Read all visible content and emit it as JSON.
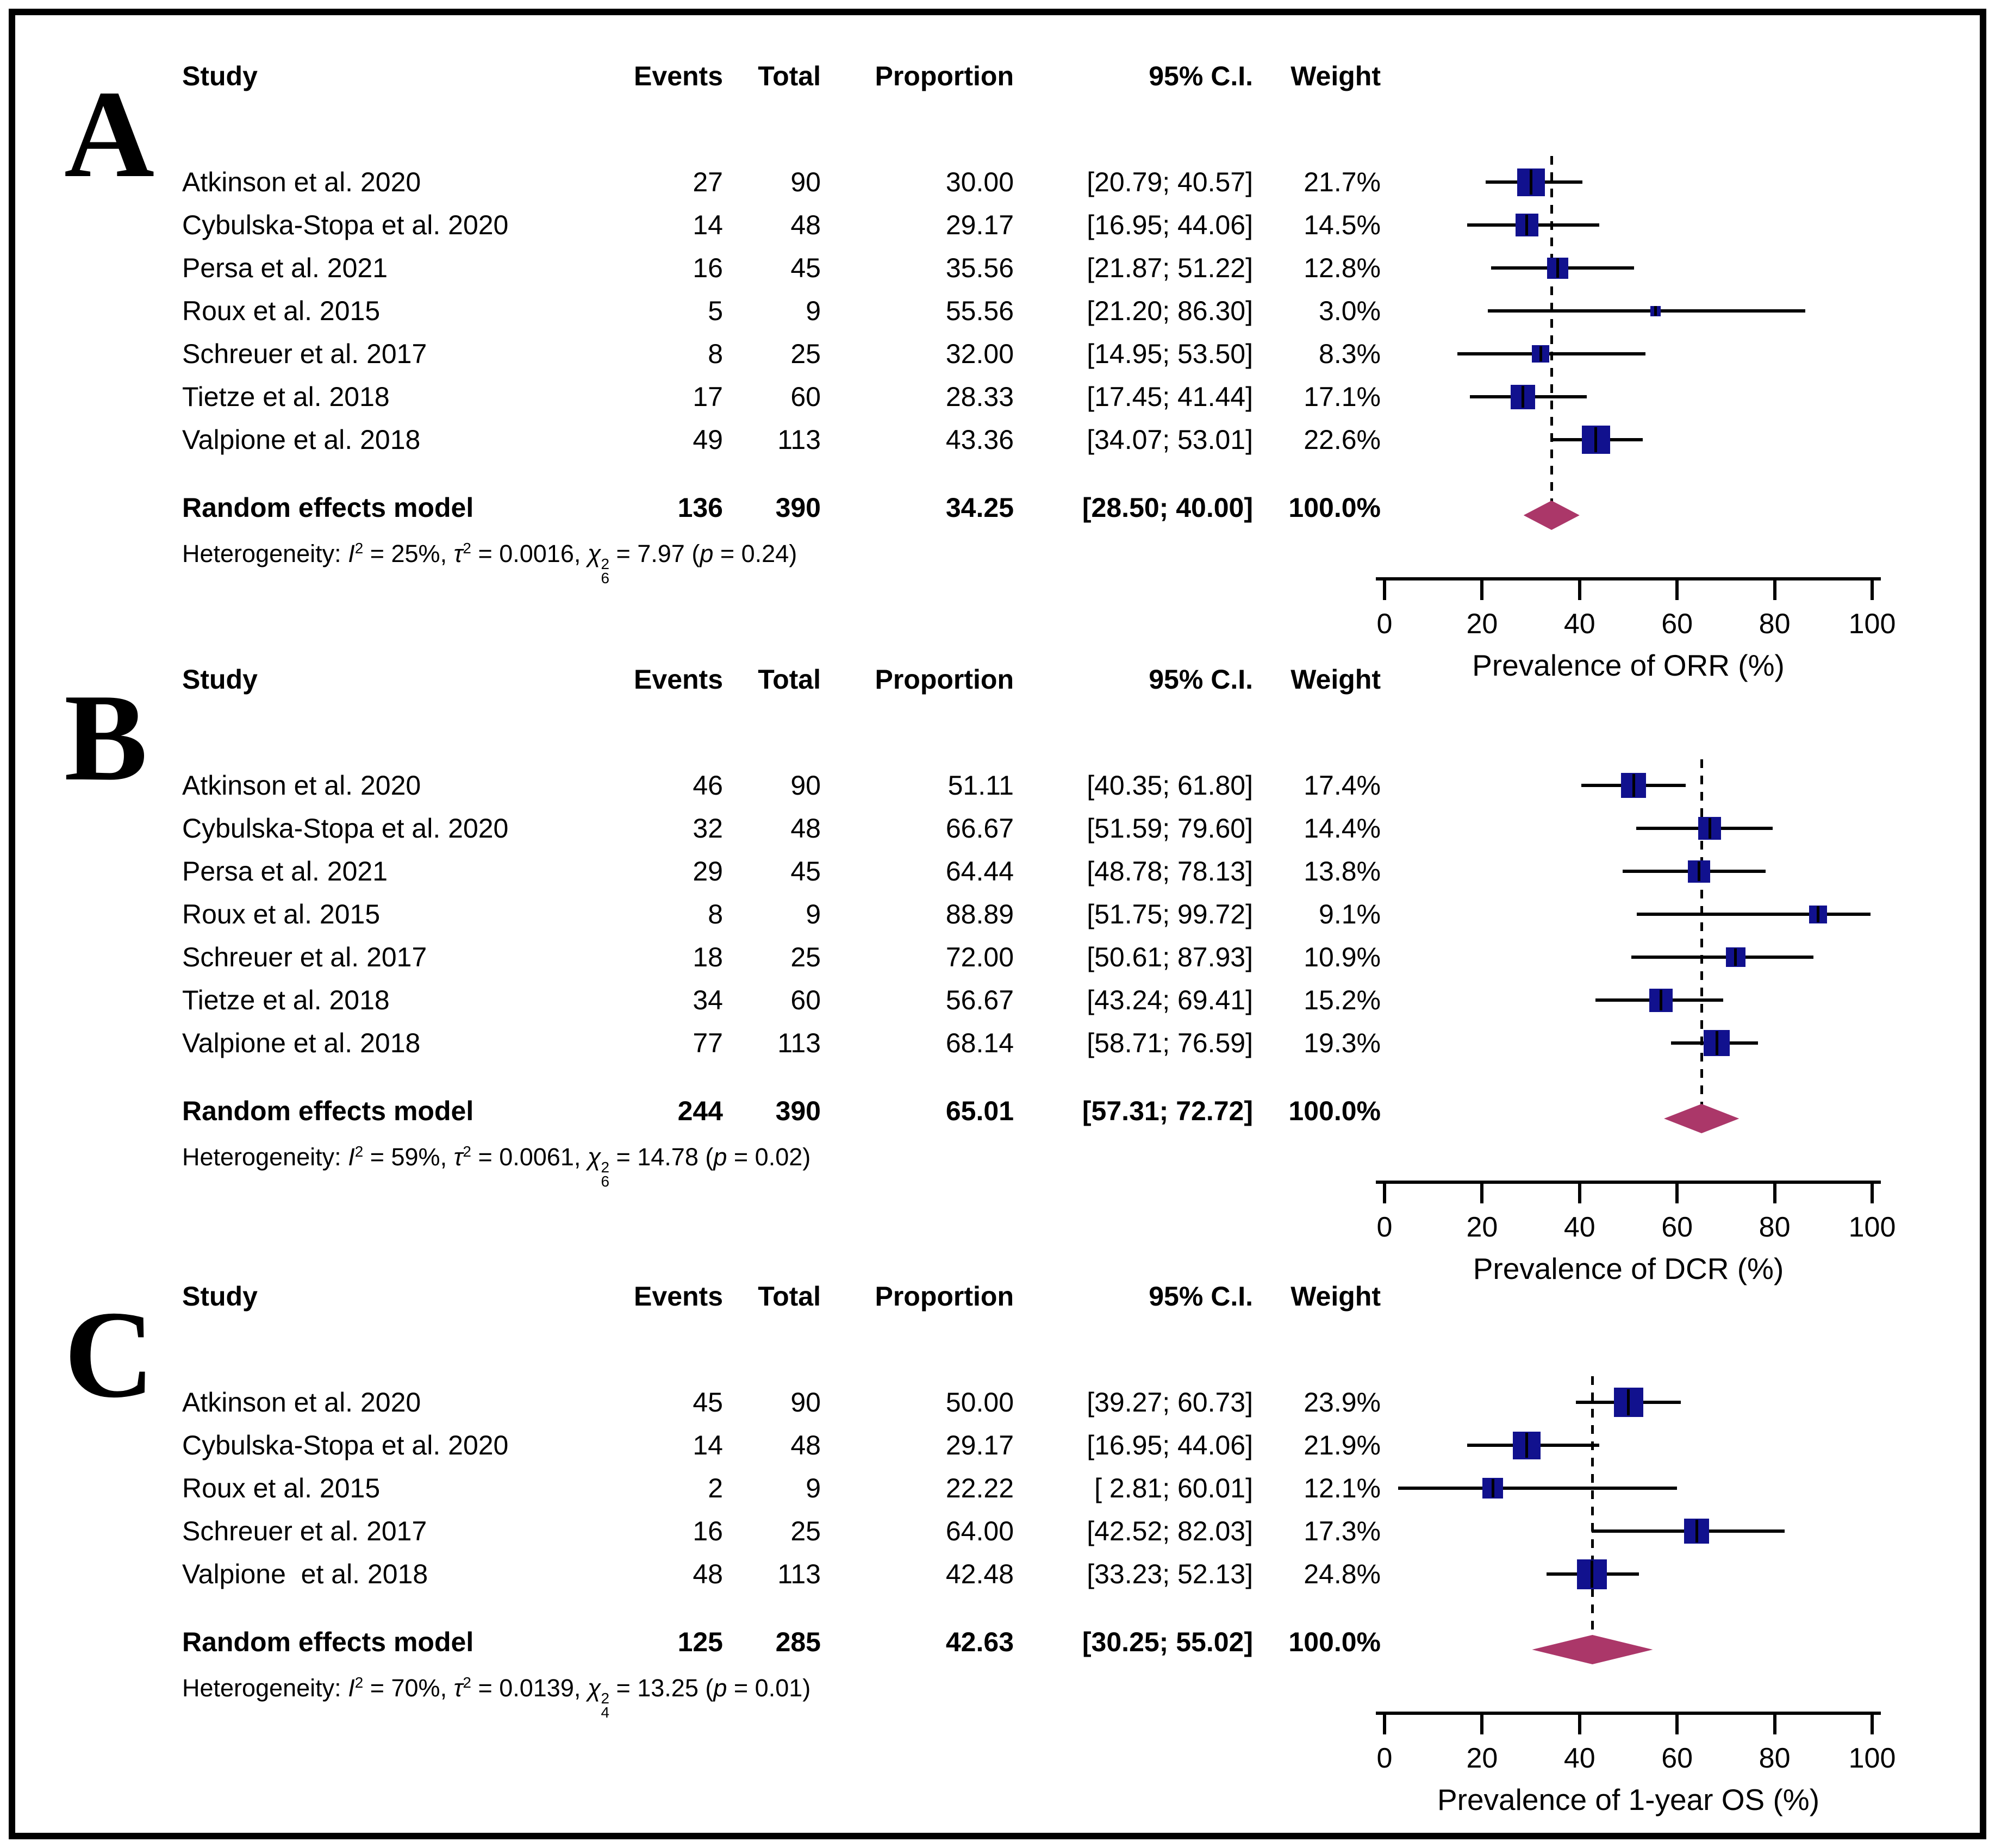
{
  "table_headers": {
    "study": "Study",
    "events": "Events",
    "total": "Total",
    "proportion": "Proportion",
    "ci": "95% C.I.",
    "weight": "Weight"
  },
  "pooled_label": "Random effects model",
  "colors": {
    "square": "#11118e",
    "diamond": "#ab3769",
    "line": "#000000"
  },
  "chart_data": [
    {
      "type": "forest",
      "panel_label": "A",
      "xlabel": "Prevalence of ORR (%)",
      "xlim": [
        0,
        100
      ],
      "xticks": [
        0,
        20,
        40,
        60,
        80,
        100
      ],
      "studies": [
        {
          "label": "Atkinson et al. 2020",
          "events": "27",
          "total": "90",
          "proportion": 30.0,
          "proportion_text": "30.00",
          "ci": [
            20.79,
            40.57
          ],
          "ci_text": "[20.79; 40.57]",
          "weight": 21.7,
          "weight_text": "21.7%"
        },
        {
          "label": "Cybulska-Stopa et al. 2020",
          "events": "14",
          "total": "48",
          "proportion": 29.17,
          "proportion_text": "29.17",
          "ci": [
            16.95,
            44.06
          ],
          "ci_text": "[16.95; 44.06]",
          "weight": 14.5,
          "weight_text": "14.5%"
        },
        {
          "label": "Persa et al. 2021",
          "events": "16",
          "total": "45",
          "proportion": 35.56,
          "proportion_text": "35.56",
          "ci": [
            21.87,
            51.22
          ],
          "ci_text": "[21.87; 51.22]",
          "weight": 12.8,
          "weight_text": "12.8%"
        },
        {
          "label": "Roux et al. 2015",
          "events": "5",
          "total": "9",
          "proportion": 55.56,
          "proportion_text": "55.56",
          "ci": [
            21.2,
            86.3
          ],
          "ci_text": "[21.20; 86.30]",
          "weight": 3.0,
          "weight_text": "3.0%"
        },
        {
          "label": "Schreuer et al. 2017",
          "events": "8",
          "total": "25",
          "proportion": 32.0,
          "proportion_text": "32.00",
          "ci": [
            14.95,
            53.5
          ],
          "ci_text": "[14.95; 53.50]",
          "weight": 8.3,
          "weight_text": "8.3%"
        },
        {
          "label": "Tietze et al. 2018",
          "events": "17",
          "total": "60",
          "proportion": 28.33,
          "proportion_text": "28.33",
          "ci": [
            17.45,
            41.44
          ],
          "ci_text": "[17.45; 41.44]",
          "weight": 17.1,
          "weight_text": "17.1%"
        },
        {
          "label": "Valpione et al. 2018",
          "events": "49",
          "total": "113",
          "proportion": 43.36,
          "proportion_text": "43.36",
          "ci": [
            34.07,
            53.01
          ],
          "ci_text": "[34.07; 53.01]",
          "weight": 22.6,
          "weight_text": "22.6%"
        }
      ],
      "pooled": {
        "events": "136",
        "total": "390",
        "proportion": 34.25,
        "proportion_text": "34.25",
        "ci": [
          28.5,
          40.0
        ],
        "ci_text": "[28.50; 40.00]",
        "weight_text": "100.0%"
      },
      "heterogeneity": [
        {
          "t": "Heterogeneity: "
        },
        {
          "t": "I",
          "i": 1,
          "sup": "2"
        },
        {
          "t": " = 25%, "
        },
        {
          "t": "τ",
          "i": 1,
          "sup": "2"
        },
        {
          "t": " = 0.0016, "
        },
        {
          "t": "χ",
          "i": 1,
          "sup": "2",
          "sub": "6"
        },
        {
          "t": " = 7.97 ("
        },
        {
          "t": "p",
          "i": 1
        },
        {
          "t": " = 0.24)"
        }
      ]
    },
    {
      "type": "forest",
      "panel_label": "B",
      "xlabel": "Prevalence of DCR (%)",
      "xlim": [
        0,
        100
      ],
      "xticks": [
        0,
        20,
        40,
        60,
        80,
        100
      ],
      "studies": [
        {
          "label": "Atkinson et al. 2020",
          "events": "46",
          "total": "90",
          "proportion": 51.11,
          "proportion_text": "51.11",
          "ci": [
            40.35,
            61.8
          ],
          "ci_text": "[40.35; 61.80]",
          "weight": 17.4,
          "weight_text": "17.4%"
        },
        {
          "label": "Cybulska-Stopa et al. 2020",
          "events": "32",
          "total": "48",
          "proportion": 66.67,
          "proportion_text": "66.67",
          "ci": [
            51.59,
            79.6
          ],
          "ci_text": "[51.59; 79.60]",
          "weight": 14.4,
          "weight_text": "14.4%"
        },
        {
          "label": "Persa et al. 2021",
          "events": "29",
          "total": "45",
          "proportion": 64.44,
          "proportion_text": "64.44",
          "ci": [
            48.78,
            78.13
          ],
          "ci_text": "[48.78; 78.13]",
          "weight": 13.8,
          "weight_text": "13.8%"
        },
        {
          "label": "Roux et al. 2015",
          "events": "8",
          "total": "9",
          "proportion": 88.89,
          "proportion_text": "88.89",
          "ci": [
            51.75,
            99.72
          ],
          "ci_text": "[51.75; 99.72]",
          "weight": 9.1,
          "weight_text": "9.1%"
        },
        {
          "label": "Schreuer et al. 2017",
          "events": "18",
          "total": "25",
          "proportion": 72.0,
          "proportion_text": "72.00",
          "ci": [
            50.61,
            87.93
          ],
          "ci_text": "[50.61; 87.93]",
          "weight": 10.9,
          "weight_text": "10.9%"
        },
        {
          "label": "Tietze et al. 2018",
          "events": "34",
          "total": "60",
          "proportion": 56.67,
          "proportion_text": "56.67",
          "ci": [
            43.24,
            69.41
          ],
          "ci_text": "[43.24; 69.41]",
          "weight": 15.2,
          "weight_text": "15.2%"
        },
        {
          "label": "Valpione et al. 2018",
          "events": "77",
          "total": "113",
          "proportion": 68.14,
          "proportion_text": "68.14",
          "ci": [
            58.71,
            76.59
          ],
          "ci_text": "[58.71; 76.59]",
          "weight": 19.3,
          "weight_text": "19.3%"
        }
      ],
      "pooled": {
        "events": "244",
        "total": "390",
        "proportion": 65.01,
        "proportion_text": "65.01",
        "ci": [
          57.31,
          72.72
        ],
        "ci_text": "[57.31; 72.72]",
        "weight_text": "100.0%"
      },
      "heterogeneity": [
        {
          "t": "Heterogeneity: "
        },
        {
          "t": "I",
          "i": 1,
          "sup": "2"
        },
        {
          "t": " = 59%, "
        },
        {
          "t": "τ",
          "i": 1,
          "sup": "2"
        },
        {
          "t": " = 0.0061, "
        },
        {
          "t": "χ",
          "i": 1,
          "sup": "2",
          "sub": "6"
        },
        {
          "t": " = 14.78 ("
        },
        {
          "t": "p",
          "i": 1
        },
        {
          "t": " = 0.02)"
        }
      ]
    },
    {
      "type": "forest",
      "panel_label": "C",
      "xlabel": "Prevalence of 1-year OS (%)",
      "xlim": [
        0,
        100
      ],
      "xticks": [
        0,
        20,
        40,
        60,
        80,
        100
      ],
      "studies": [
        {
          "label": "Atkinson et al. 2020",
          "events": "45",
          "total": "90",
          "proportion": 50.0,
          "proportion_text": "50.00",
          "ci": [
            39.27,
            60.73
          ],
          "ci_text": "[39.27; 60.73]",
          "weight": 23.9,
          "weight_text": "23.9%"
        },
        {
          "label": "Cybulska-Stopa et al. 2020",
          "events": "14",
          "total": "48",
          "proportion": 29.17,
          "proportion_text": "29.17",
          "ci": [
            16.95,
            44.06
          ],
          "ci_text": "[16.95; 44.06]",
          "weight": 21.9,
          "weight_text": "21.9%"
        },
        {
          "label": "Roux et al. 2015",
          "events": "2",
          "total": "9",
          "proportion": 22.22,
          "proportion_text": "22.22",
          "ci": [
            2.81,
            60.01
          ],
          "ci_text": "[ 2.81; 60.01]",
          "weight": 12.1,
          "weight_text": "12.1%"
        },
        {
          "label": "Schreuer et al. 2017",
          "events": "16",
          "total": "25",
          "proportion": 64.0,
          "proportion_text": "64.00",
          "ci": [
            42.52,
            82.03
          ],
          "ci_text": "[42.52; 82.03]",
          "weight": 17.3,
          "weight_text": "17.3%"
        },
        {
          "label": "Valpione  et al. 2018",
          "events": "48",
          "total": "113",
          "proportion": 42.48,
          "proportion_text": "42.48",
          "ci": [
            33.23,
            52.13
          ],
          "ci_text": "[33.23; 52.13]",
          "weight": 24.8,
          "weight_text": "24.8%"
        }
      ],
      "pooled": {
        "events": "125",
        "total": "285",
        "proportion": 42.63,
        "proportion_text": "42.63",
        "ci": [
          30.25,
          55.02
        ],
        "ci_text": "[30.25; 55.02]",
        "weight_text": "100.0%"
      },
      "heterogeneity": [
        {
          "t": "Heterogeneity: "
        },
        {
          "t": "I",
          "i": 1,
          "sup": "2"
        },
        {
          "t": " = 70%, "
        },
        {
          "t": "τ",
          "i": 1,
          "sup": "2"
        },
        {
          "t": " = 0.0139, "
        },
        {
          "t": "χ",
          "i": 1,
          "sup": "2",
          "sub": "4"
        },
        {
          "t": " = 13.25 ("
        },
        {
          "t": "p",
          "i": 1
        },
        {
          "t": " = 0.01)"
        }
      ]
    }
  ]
}
